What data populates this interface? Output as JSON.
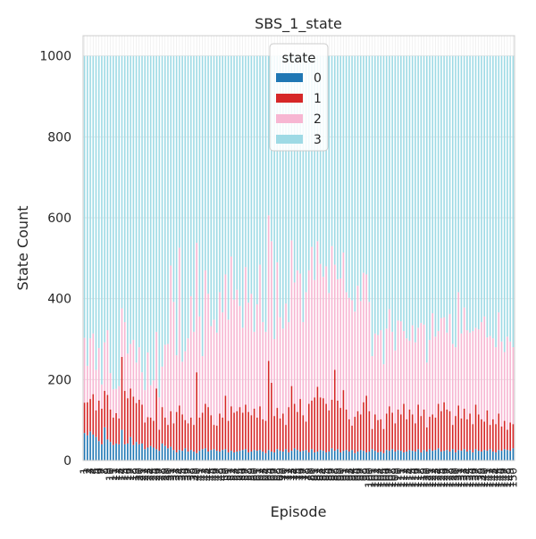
{
  "chart_data": {
    "type": "bar",
    "stacked": true,
    "title": "SBS_1_state",
    "xlabel": "Episode",
    "ylabel": "State Count",
    "ylim": [
      0,
      1050
    ],
    "yticks": [
      0,
      200,
      400,
      600,
      800,
      1000
    ],
    "grid": true,
    "legend": {
      "title": "state",
      "placement": "top-center"
    },
    "categories_range": [
      1,
      150
    ],
    "x_tick_rotation": 90,
    "series": [
      {
        "name": "0",
        "color": "#1f77b4",
        "values": [
          68,
          62,
          72,
          64,
          58,
          48,
          40,
          82,
          52,
          46,
          38,
          42,
          40,
          76,
          40,
          42,
          58,
          38,
          46,
          40,
          42,
          28,
          32,
          36,
          32,
          28,
          24,
          42,
          36,
          30,
          34,
          26,
          20,
          26,
          24,
          30,
          22,
          26,
          22,
          18,
          24,
          28,
          30,
          22,
          26,
          28,
          24,
          22,
          26,
          28,
          20,
          24,
          20,
          22,
          24,
          26,
          28,
          20,
          22,
          26,
          24,
          26,
          22,
          18,
          26,
          22,
          20,
          28,
          24,
          22,
          28,
          20,
          24,
          30,
          26,
          22,
          24,
          26,
          20,
          28,
          20,
          22,
          26,
          24,
          20,
          22,
          30,
          24,
          28,
          20,
          24,
          26,
          22,
          26,
          18,
          22,
          26,
          24,
          20,
          22,
          28,
          24,
          20,
          22,
          18,
          26,
          24,
          28,
          22,
          26,
          24,
          20,
          22,
          26,
          24,
          22,
          28,
          20,
          26,
          22,
          28,
          24,
          26,
          30,
          22,
          24,
          26,
          22,
          28,
          20,
          26,
          24,
          28,
          22,
          26,
          20,
          28,
          24,
          22,
          26,
          24,
          28,
          22,
          20,
          26,
          24,
          28,
          26,
          24,
          30
        ]
      },
      {
        "name": "1",
        "color": "#d62728",
        "values": [
          75,
          82,
          80,
          100,
          66,
          100,
          88,
          90,
          110,
          80,
          68,
          75,
          64,
          180,
          132,
          112,
          120,
          120,
          96,
          110,
          96,
          66,
          75,
          70,
          66,
          150,
          52,
          90,
          70,
          58,
          88,
          66,
          100,
          110,
          90,
          70,
          70,
          80,
          66,
          200,
          82,
          90,
          110,
          110,
          86,
          60,
          62,
          94,
          80,
          132,
          78,
          110,
          98,
          100,
          108,
          92,
          110,
          100,
          90,
          102,
          82,
          108,
          80,
          80,
          220,
          170,
          90,
          102,
          80,
          94,
          60,
          112,
          160,
          110,
          94,
          130,
          88,
          70,
          120,
          120,
          136,
          160,
          130,
          130,
          120,
          102,
          120,
          200,
          120,
          110,
          150,
          100,
          80,
          60,
          90,
          100,
          88,
          120,
          140,
          100,
          50,
          90,
          80,
          80,
          60,
          90,
          110,
          90,
          70,
          100,
          90,
          120,
          80,
          100,
          90,
          70,
          110,
          90,
          100,
          60,
          80,
          90,
          80,
          110,
          100,
          120,
          100,
          100,
          60,
          90,
          110,
          80,
          100,
          80,
          90,
          70,
          110,
          90,
          80,
          70,
          100,
          60,
          80,
          70,
          90,
          60,
          70,
          50,
          70,
          60
        ]
      },
      {
        "name": "2",
        "color": "#f7b6d2",
        "values": [
          160,
          90,
          150,
          150,
          100,
          130,
          60,
          120,
          160,
          90,
          70,
          60,
          80,
          120,
          170,
          110,
          110,
          140,
          100,
          130,
          80,
          80,
          160,
          80,
          100,
          140,
          80,
          100,
          180,
          200,
          360,
          300,
          140,
          390,
          130,
          170,
          210,
          300,
          230,
          320,
          250,
          140,
          330,
          280,
          220,
          260,
          230,
          300,
          260,
          300,
          250,
          370,
          280,
          300,
          250,
          210,
          340,
          270,
          300,
          190,
          280,
          350,
          240,
          220,
          360,
          350,
          190,
          360,
          250,
          210,
          300,
          210,
          360,
          300,
          350,
          310,
          230,
          320,
          330,
          380,
          290,
          360,
          330,
          300,
          340,
          290,
          380,
          260,
          300,
          320,
          340,
          290,
          300,
          310,
          260,
          310,
          280,
          320,
          300,
          270,
          180,
          200,
          210,
          220,
          160,
          210,
          240,
          200,
          180,
          220,
          230,
          180,
          200,
          170,
          220,
          200,
          190,
          230,
          210,
          160,
          190,
          250,
          200,
          180,
          230,
          210,
          190,
          240,
          200,
          170,
          280,
          210,
          250,
          220,
          200,
          230,
          190,
          210,
          240,
          260,
          180,
          220,
          200,
          190,
          250,
          210,
          170,
          230,
          200,
          190
        ]
      }
    ],
    "total_per_episode": 1000
  }
}
